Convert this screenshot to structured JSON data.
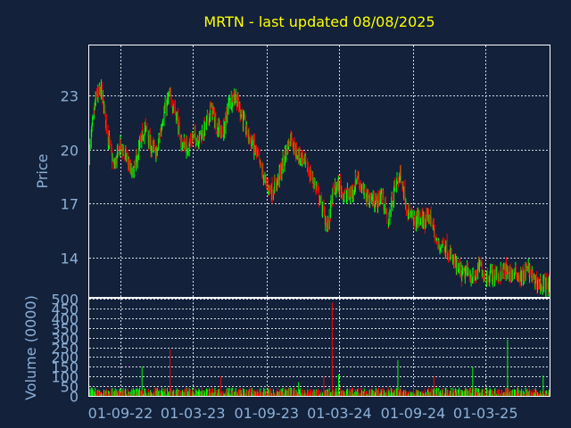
{
  "theme": {
    "background": "#13213a",
    "panel_border": "#ffffff",
    "grid": "#d8dde6",
    "title_color": "#ffff00",
    "axis_text_color": "#8db0d8",
    "up_color": "#00ff00",
    "down_color": "#ff0000"
  },
  "chart_data": [
    {
      "type": "candlestick",
      "title": "MRTN - last updated 08/08/2025",
      "ylabel": "Price",
      "ylim": [
        11.75,
        25.8
      ],
      "yticks": [
        14,
        17,
        20,
        23
      ],
      "ytick_labels": [
        "14",
        "17",
        "20",
        "23"
      ],
      "grid": true,
      "x_range": [
        "2022-06-15",
        "2025-08-08"
      ],
      "x_gridlines": [
        "2022-09-01",
        "2023-03-01",
        "2023-09-01",
        "2024-03-01",
        "2024-09-01",
        "2025-03-01"
      ],
      "close_series_approx": {
        "dates": [
          "2022-06-15",
          "2022-07-01",
          "2022-07-15",
          "2022-08-01",
          "2022-08-15",
          "2022-09-01",
          "2022-09-15",
          "2022-10-01",
          "2022-10-15",
          "2022-11-01",
          "2022-11-15",
          "2022-12-01",
          "2022-12-15",
          "2023-01-01",
          "2023-01-15",
          "2023-02-01",
          "2023-02-15",
          "2023-03-01",
          "2023-03-15",
          "2023-04-01",
          "2023-04-15",
          "2023-05-01",
          "2023-05-15",
          "2023-06-01",
          "2023-06-15",
          "2023-07-01",
          "2023-07-15",
          "2023-08-01",
          "2023-08-15",
          "2023-09-01",
          "2023-09-15",
          "2023-10-01",
          "2023-10-15",
          "2023-11-01",
          "2023-11-15",
          "2023-12-01",
          "2023-12-15",
          "2024-01-01",
          "2024-01-15",
          "2024-02-01",
          "2024-02-15",
          "2024-03-01",
          "2024-03-15",
          "2024-04-01",
          "2024-04-15",
          "2024-05-01",
          "2024-05-15",
          "2024-06-01",
          "2024-06-15",
          "2024-07-01",
          "2024-07-15",
          "2024-08-01",
          "2024-08-15",
          "2024-09-01",
          "2024-09-15",
          "2024-10-01",
          "2024-10-15",
          "2024-11-01",
          "2024-11-15",
          "2024-12-01",
          "2024-12-15",
          "2025-01-01",
          "2025-01-15",
          "2025-02-01",
          "2025-02-15",
          "2025-03-01",
          "2025-03-15",
          "2025-04-01",
          "2025-04-15",
          "2025-05-01",
          "2025-05-15",
          "2025-06-01",
          "2025-06-15",
          "2025-07-01",
          "2025-07-15",
          "2025-08-08"
        ],
        "values": [
          19.8,
          22.8,
          23.3,
          20.8,
          19.0,
          20.2,
          19.6,
          18.5,
          19.8,
          21.3,
          20.2,
          19.8,
          21.8,
          23.0,
          22.3,
          20.3,
          20.2,
          20.7,
          20.6,
          21.2,
          22.3,
          21.2,
          20.9,
          22.8,
          23.0,
          21.9,
          20.9,
          20.1,
          19.2,
          18.0,
          17.7,
          18.4,
          19.5,
          20.8,
          19.8,
          19.5,
          18.8,
          18.0,
          17.0,
          15.7,
          17.8,
          18.0,
          17.4,
          17.6,
          18.6,
          17.5,
          17.3,
          17.0,
          17.6,
          15.9,
          17.8,
          18.7,
          16.9,
          16.0,
          16.2,
          16.0,
          16.3,
          14.6,
          14.8,
          14.2,
          13.6,
          13.0,
          13.2,
          12.8,
          13.6,
          12.9,
          13.1,
          13.0,
          13.3,
          13.1,
          13.1,
          12.9,
          13.4,
          12.7,
          12.5,
          12.4
        ]
      }
    },
    {
      "type": "bar",
      "ylabel": "Volume (0000)",
      "ylim": [
        0,
        500
      ],
      "yticks": [
        0,
        50,
        100,
        150,
        200,
        250,
        300,
        350,
        400,
        450,
        500
      ],
      "ytick_labels": [
        "0",
        "50",
        "100",
        "150",
        "200",
        "250",
        "300",
        "350",
        "400",
        "450",
        "500"
      ],
      "xtick_labels": [
        "01-09-22",
        "01-03-23",
        "01-09-23",
        "01-03-24",
        "01-09-24",
        "01-03-25"
      ],
      "typical_volume": 22,
      "volume_spikes": [
        {
          "date": "2022-10-25",
          "value": 150
        },
        {
          "date": "2023-01-03",
          "value": 240
        },
        {
          "date": "2023-05-10",
          "value": 100
        },
        {
          "date": "2023-11-20",
          "value": 70
        },
        {
          "date": "2024-01-22",
          "value": 100
        },
        {
          "date": "2024-02-12",
          "value": 480
        },
        {
          "date": "2024-02-28",
          "value": 110
        },
        {
          "date": "2024-07-25",
          "value": 185
        },
        {
          "date": "2024-10-23",
          "value": 100
        },
        {
          "date": "2025-01-28",
          "value": 150
        },
        {
          "date": "2025-04-25",
          "value": 290
        },
        {
          "date": "2025-07-23",
          "value": 105
        }
      ]
    }
  ]
}
